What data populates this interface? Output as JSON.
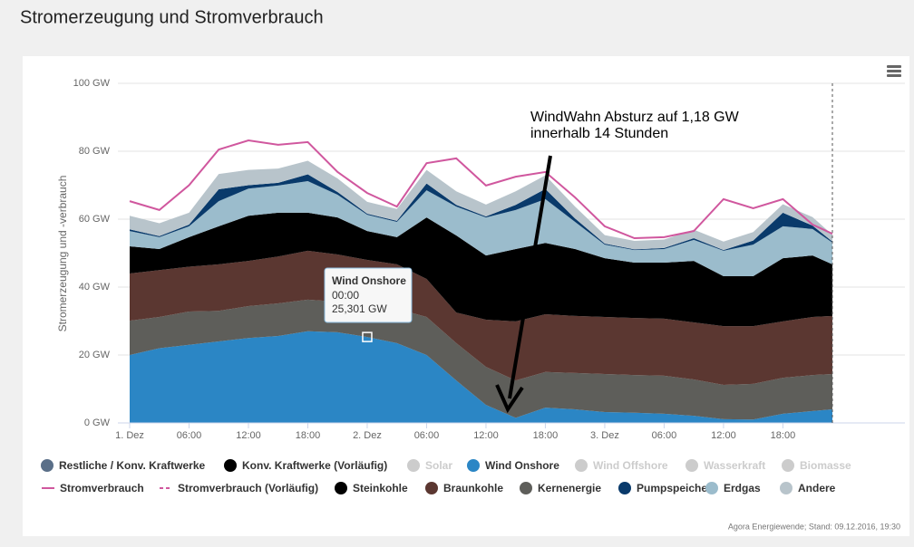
{
  "page_title": "Stromerzeugung und Stromverbrauch",
  "chart_data": {
    "type": "stacked-area",
    "y_label": "Stromerzeugung und -verbrauch",
    "x": [
      0,
      3,
      6,
      9,
      12,
      15,
      18,
      21,
      24,
      27,
      30,
      33,
      36,
      39,
      42,
      45,
      48,
      51,
      54,
      57,
      60,
      63,
      66,
      69,
      71
    ],
    "xlim": [
      0,
      71
    ],
    "xticks": [
      {
        "value": 0,
        "label": "1. Dez"
      },
      {
        "value": 6,
        "label": "06:00"
      },
      {
        "value": 12,
        "label": "12:00"
      },
      {
        "value": 18,
        "label": "18:00"
      },
      {
        "value": 24,
        "label": "2. Dez"
      },
      {
        "value": 30,
        "label": "06:00"
      },
      {
        "value": 36,
        "label": "12:00"
      },
      {
        "value": 42,
        "label": "18:00"
      },
      {
        "value": 48,
        "label": "3. Dez"
      },
      {
        "value": 54,
        "label": "06:00"
      },
      {
        "value": 60,
        "label": "12:00"
      },
      {
        "value": 66,
        "label": "18:00"
      }
    ],
    "ylim": [
      0,
      100
    ],
    "yticks": [
      {
        "value": 0,
        "label": "0 GW"
      },
      {
        "value": 20,
        "label": "20 GW"
      },
      {
        "value": 40,
        "label": "40 GW"
      },
      {
        "value": 60,
        "label": "60 GW"
      },
      {
        "value": 80,
        "label": "80 GW"
      },
      {
        "value": 100,
        "label": "100 GW"
      }
    ],
    "grid": true,
    "series": [
      {
        "name": "Restliche / Konv. Kraftwerke",
        "color": "#5a6f88",
        "visible": true
      },
      {
        "name": "Konv. Kraftwerke (Vorläufig)",
        "color": "#000000",
        "visible": true
      },
      {
        "name": "Solar",
        "color": "#cccccc",
        "visible": false
      },
      {
        "name": "Wind Onshore",
        "color": "#2b86c5",
        "visible": true,
        "values": [
          20,
          22,
          23,
          24,
          25,
          25.6,
          27,
          26.7,
          25.3,
          23.5,
          20,
          12.5,
          5.3,
          1.5,
          4.5,
          4,
          3.2,
          3,
          2.7,
          2.1,
          1.1,
          1,
          2.7,
          3.5,
          4
        ]
      },
      {
        "name": "Wind Offshore",
        "color": "#cccccc",
        "visible": false
      },
      {
        "name": "Wasserkraft",
        "color": "#cccccc",
        "visible": false
      },
      {
        "name": "Biomasse",
        "color": "#cccccc",
        "visible": false
      },
      {
        "name": "Stromverbrauch",
        "color": "#d0579e",
        "visible": true,
        "line": true,
        "values": [
          65.3,
          62.7,
          70,
          80.5,
          83.2,
          81.9,
          82.7,
          73.9,
          67.7,
          63.7,
          76.5,
          77.9,
          69.9,
          72.5,
          73.9,
          66.4,
          57.9,
          54.4,
          54.7,
          56.5,
          65.9,
          63.2,
          65.9,
          58.4,
          55.7
        ]
      },
      {
        "name": "Stromverbrauch (Vorläufig)",
        "color": "#d0579e",
        "visible": true,
        "line": true,
        "dash": true
      },
      {
        "name": "Steinkohle",
        "color": "#000000",
        "visible": true,
        "values": [
          8,
          6.2,
          8.7,
          11.2,
          13.3,
          12.9,
          11.2,
          10.9,
          8.5,
          8,
          18.1,
          22.7,
          18.9,
          21.3,
          21,
          19.7,
          17.3,
          16.3,
          16.5,
          18.1,
          14.7,
          14.7,
          18.6,
          18.1,
          15.2
        ]
      },
      {
        "name": "Braunkohle",
        "color": "#5b3731",
        "visible": true,
        "values": [
          13.9,
          13.8,
          13.2,
          13.7,
          13.3,
          13.8,
          14.4,
          13.9,
          13.3,
          13.1,
          11.2,
          9,
          13.9,
          17.4,
          17,
          16.8,
          16.8,
          16.8,
          16.8,
          16.8,
          17.3,
          17,
          16.6,
          17.1,
          17.1
        ]
      },
      {
        "name": "Kernenergie",
        "color": "#5e5e5a",
        "visible": true,
        "values": [
          10.1,
          9.2,
          9.8,
          9,
          9.4,
          9.6,
          9.3,
          9,
          9.4,
          10.1,
          11.2,
          11,
          11.2,
          11,
          10.5,
          10.7,
          11.2,
          11.1,
          11.2,
          10.7,
          10.1,
          10.5,
          10.6,
          10.6,
          10.4
        ]
      },
      {
        "name": "Pumpspeicher",
        "color": "#093a6b",
        "visible": true,
        "values": [
          0.5,
          0.3,
          0.5,
          3.5,
          1,
          0.8,
          2,
          0.8,
          0.3,
          0.3,
          2,
          0.5,
          0.3,
          1.5,
          3,
          1,
          0.3,
          0.2,
          0.3,
          0.5,
          0.2,
          1.2,
          4,
          1,
          0.3
        ]
      },
      {
        "name": "Erdgas",
        "color": "#9bbccc",
        "visible": true,
        "values": [
          4.5,
          3.5,
          3.2,
          7.4,
          8,
          8,
          9.3,
          6.7,
          4.8,
          4.5,
          8,
          8.5,
          11.2,
          11.5,
          12.9,
          8,
          4,
          3.7,
          4,
          6.2,
          7.5,
          9.3,
          9.4,
          7.8,
          6.4
        ]
      },
      {
        "name": "Andere",
        "color": "#b8c4cb",
        "visible": true,
        "values": [
          4,
          3.8,
          3.5,
          4.5,
          4.5,
          4.2,
          4,
          4,
          3.5,
          3.5,
          4,
          4,
          3.5,
          4,
          4,
          3.5,
          2.5,
          2.5,
          2.5,
          2.5,
          2.5,
          2.5,
          2.5,
          2.5,
          2
        ]
      }
    ],
    "tooltip": {
      "series": "Wind Onshore",
      "time": "00:00",
      "value": "25,301 GW"
    },
    "annotation": [
      "WindWahn Absturz auf 1,18 GW",
      "innerhalb 14 Stunden"
    ],
    "credits": "Agora Energiewende; Stand: 09.12.2016, 19:30"
  }
}
